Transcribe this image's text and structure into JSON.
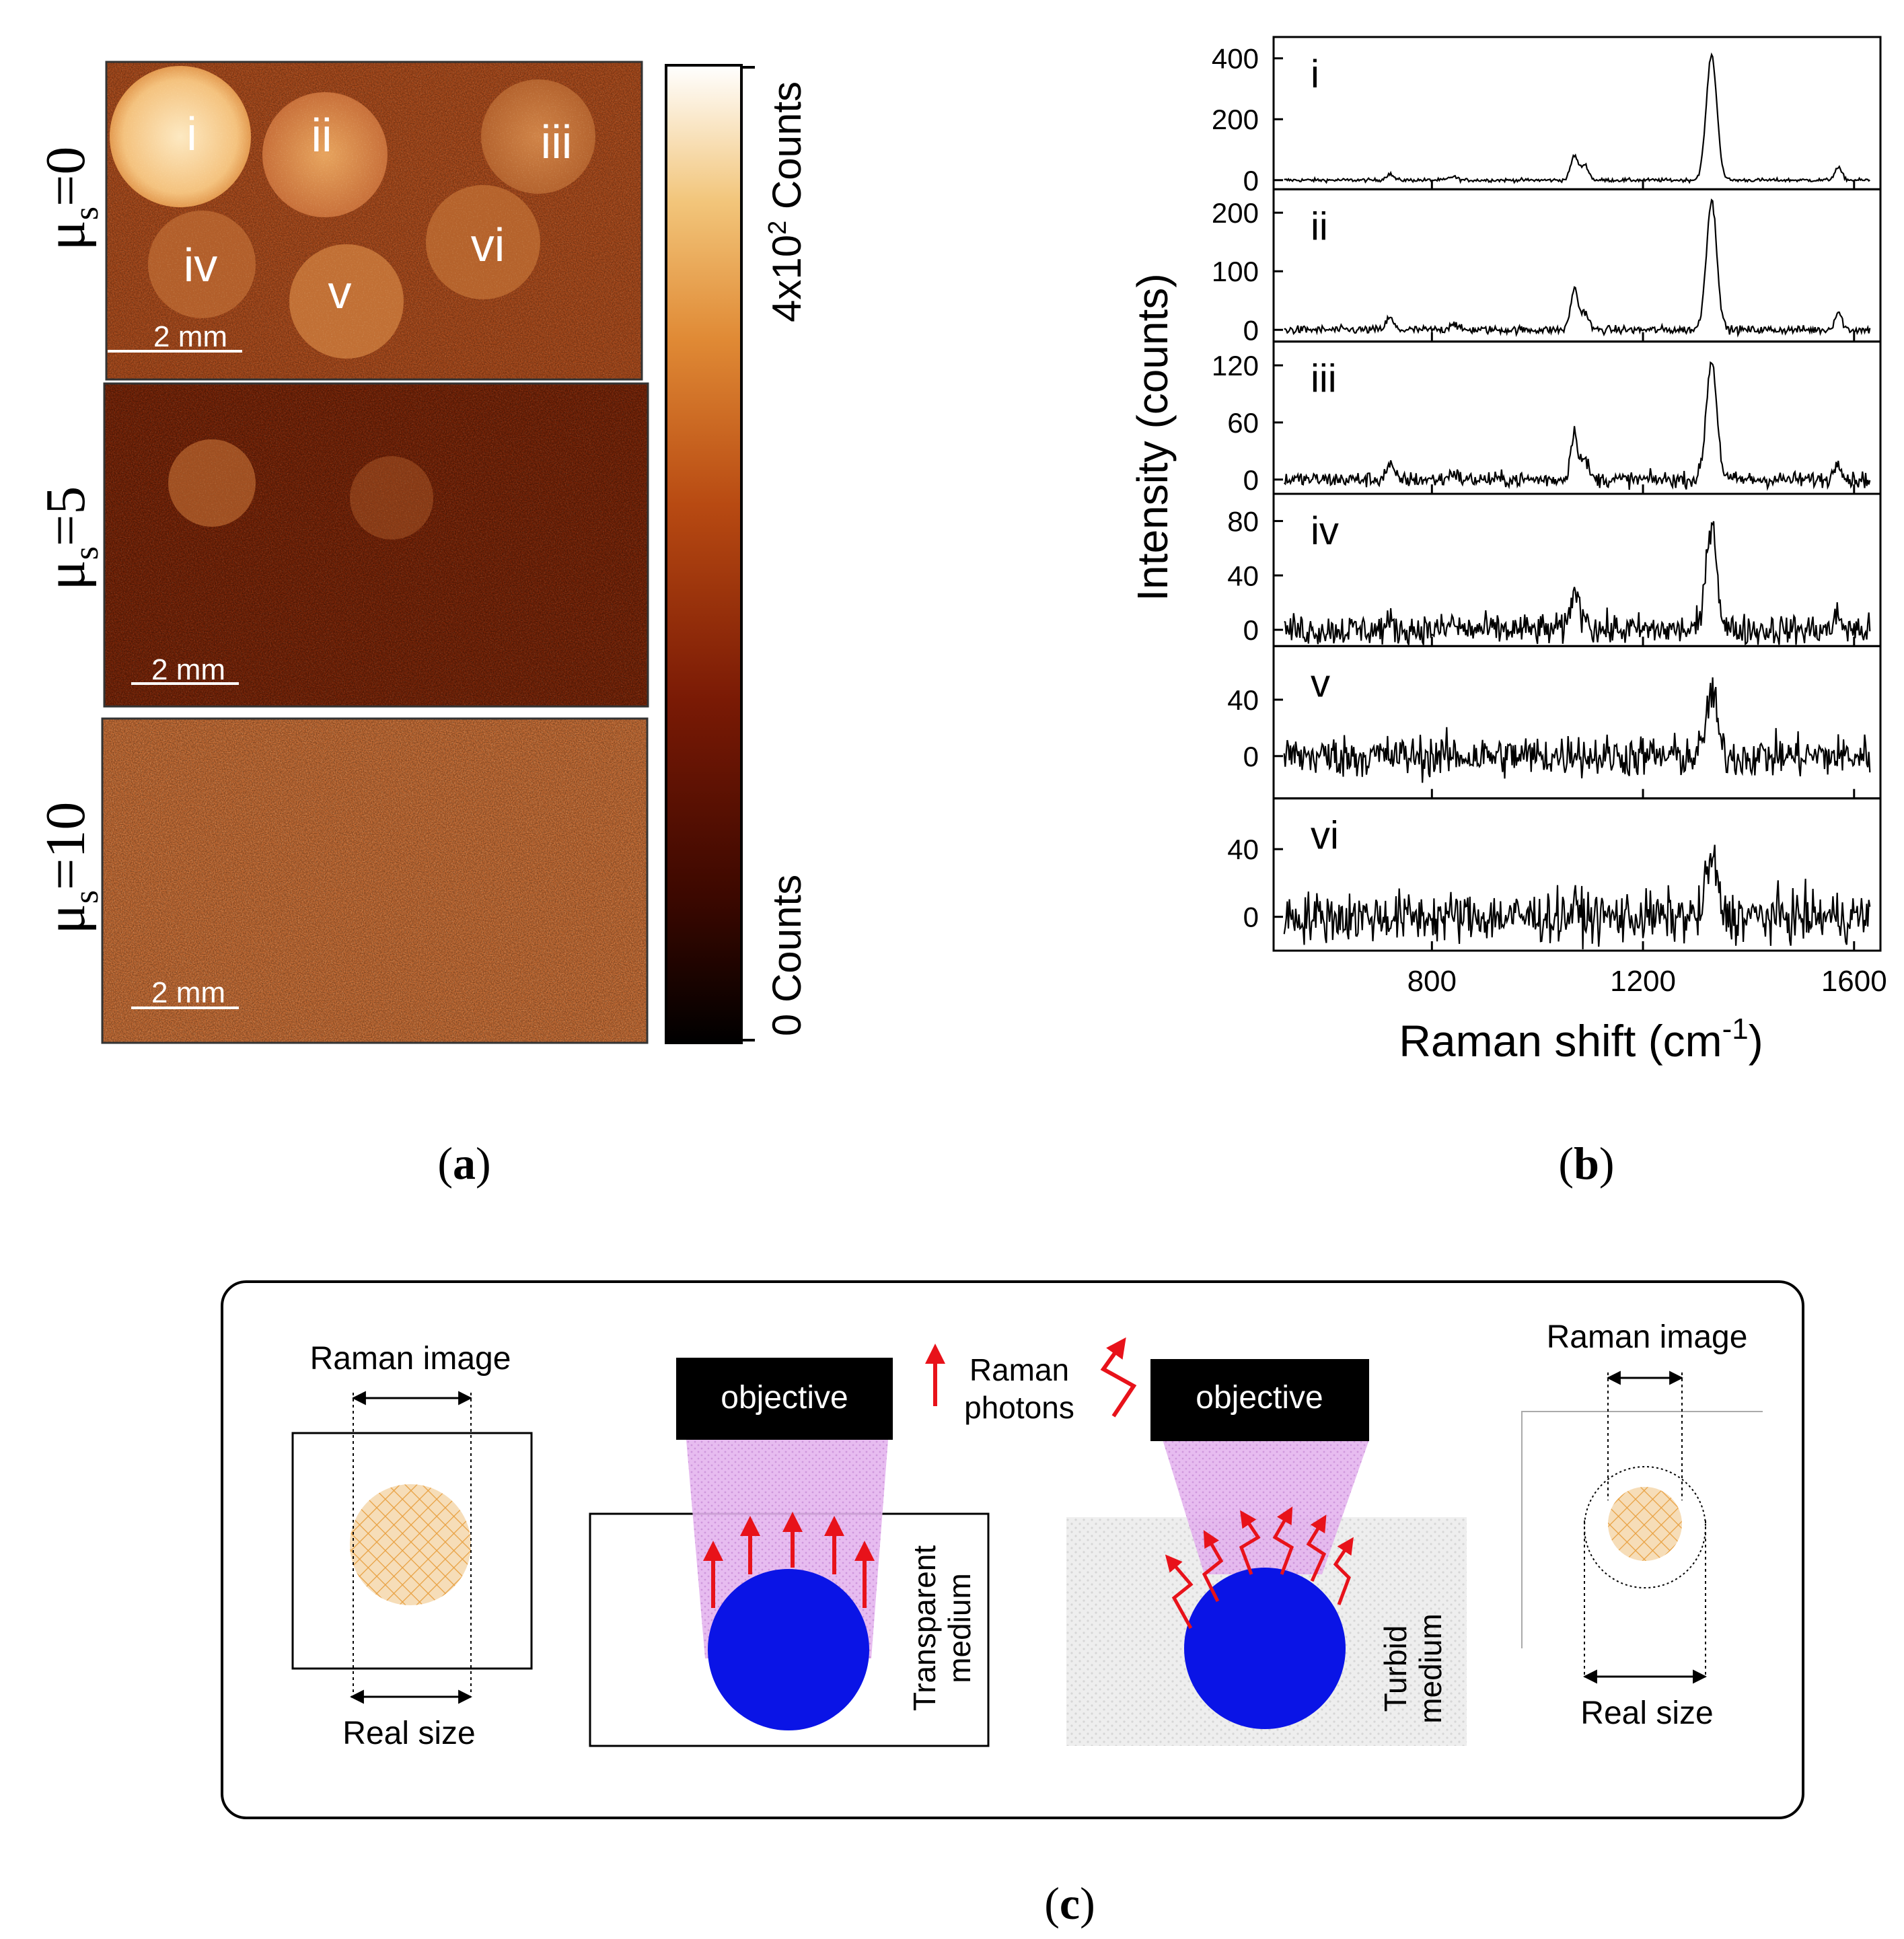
{
  "panel_a": {
    "rows": [
      {
        "mu": "μ",
        "sub": "s",
        "eq": "=0",
        "scalebar": "2 mm",
        "spot_labels": [
          "i",
          "ii",
          "iii",
          "iv",
          "v",
          "vi"
        ]
      },
      {
        "mu": "μ",
        "sub": "s",
        "eq": "=5",
        "scalebar": "2 mm"
      },
      {
        "mu": "μ",
        "sub": "s",
        "eq": "=10",
        "scalebar": "2 mm"
      }
    ],
    "colorbar": {
      "top_label_pre": "4x10",
      "top_label_sup": "2",
      "top_label_post": " Counts",
      "bottom_label": "0 Counts",
      "colors": [
        "#000000",
        "#3c0800",
        "#7a1a05",
        "#b84a12",
        "#e08a35",
        "#f2c57a",
        "#ffffff"
      ]
    }
  },
  "chart_data": {
    "type": "line",
    "xlabel": "Raman shift (cm",
    "xlabel_sup": "-1",
    "xlabel_close": ")",
    "ylabel": "Intensity (counts)",
    "xlim": [
      500,
      1650
    ],
    "xticks": [
      800,
      1200,
      1600
    ],
    "peaks_cm1": [
      720,
      840,
      1070,
      1090,
      1330,
      1570
    ],
    "series": [
      {
        "name": "i",
        "ylim": [
          -30,
          470
        ],
        "yticks": [
          0,
          200,
          400
        ],
        "peak_heights": [
          20,
          12,
          80,
          50,
          410,
          40
        ],
        "noise": 5
      },
      {
        "name": "ii",
        "ylim": [
          -20,
          240
        ],
        "yticks": [
          0,
          100,
          200
        ],
        "peak_heights": [
          20,
          12,
          70,
          30,
          220,
          30
        ],
        "noise": 6
      },
      {
        "name": "iii",
        "ylim": [
          -15,
          145
        ],
        "yticks": [
          0,
          60,
          120
        ],
        "peak_heights": [
          15,
          8,
          50,
          20,
          125,
          20
        ],
        "noise": 7
      },
      {
        "name": "iv",
        "ylim": [
          -12,
          100
        ],
        "yticks": [
          0,
          40,
          80
        ],
        "peak_heights": [
          5,
          5,
          30,
          12,
          80,
          10
        ],
        "noise": 10
      },
      {
        "name": "v",
        "ylim": [
          -30,
          78
        ],
        "yticks": [
          0,
          40
        ],
        "peak_heights": [
          0,
          0,
          5,
          0,
          45,
          0
        ],
        "noise": 13
      },
      {
        "name": "vi",
        "ylim": [
          -20,
          70
        ],
        "yticks": [
          0,
          40
        ],
        "peak_heights": [
          0,
          0,
          5,
          0,
          35,
          0
        ],
        "noise": 13
      }
    ]
  },
  "captions": {
    "a": "a",
    "b": "b",
    "c": "c"
  },
  "panel_c": {
    "raman_image_left": "Raman image",
    "real_size_left": "Real size",
    "objective_1": "objective",
    "objective_2": "objective",
    "legend_line1": "Raman",
    "legend_line2": "photons",
    "transparent_1": "Transparent",
    "transparent_2": "medium",
    "turbid_1": "Turbid",
    "turbid_2": "medium",
    "raman_image_right": "Raman image",
    "real_size_right": "Real size",
    "colors": {
      "sphere": "#0a14e6",
      "arrow": "#e8121a",
      "cone": "#e4b4ee",
      "hatch": "#f6ddb8",
      "hatch_line": "#e8a040"
    }
  }
}
